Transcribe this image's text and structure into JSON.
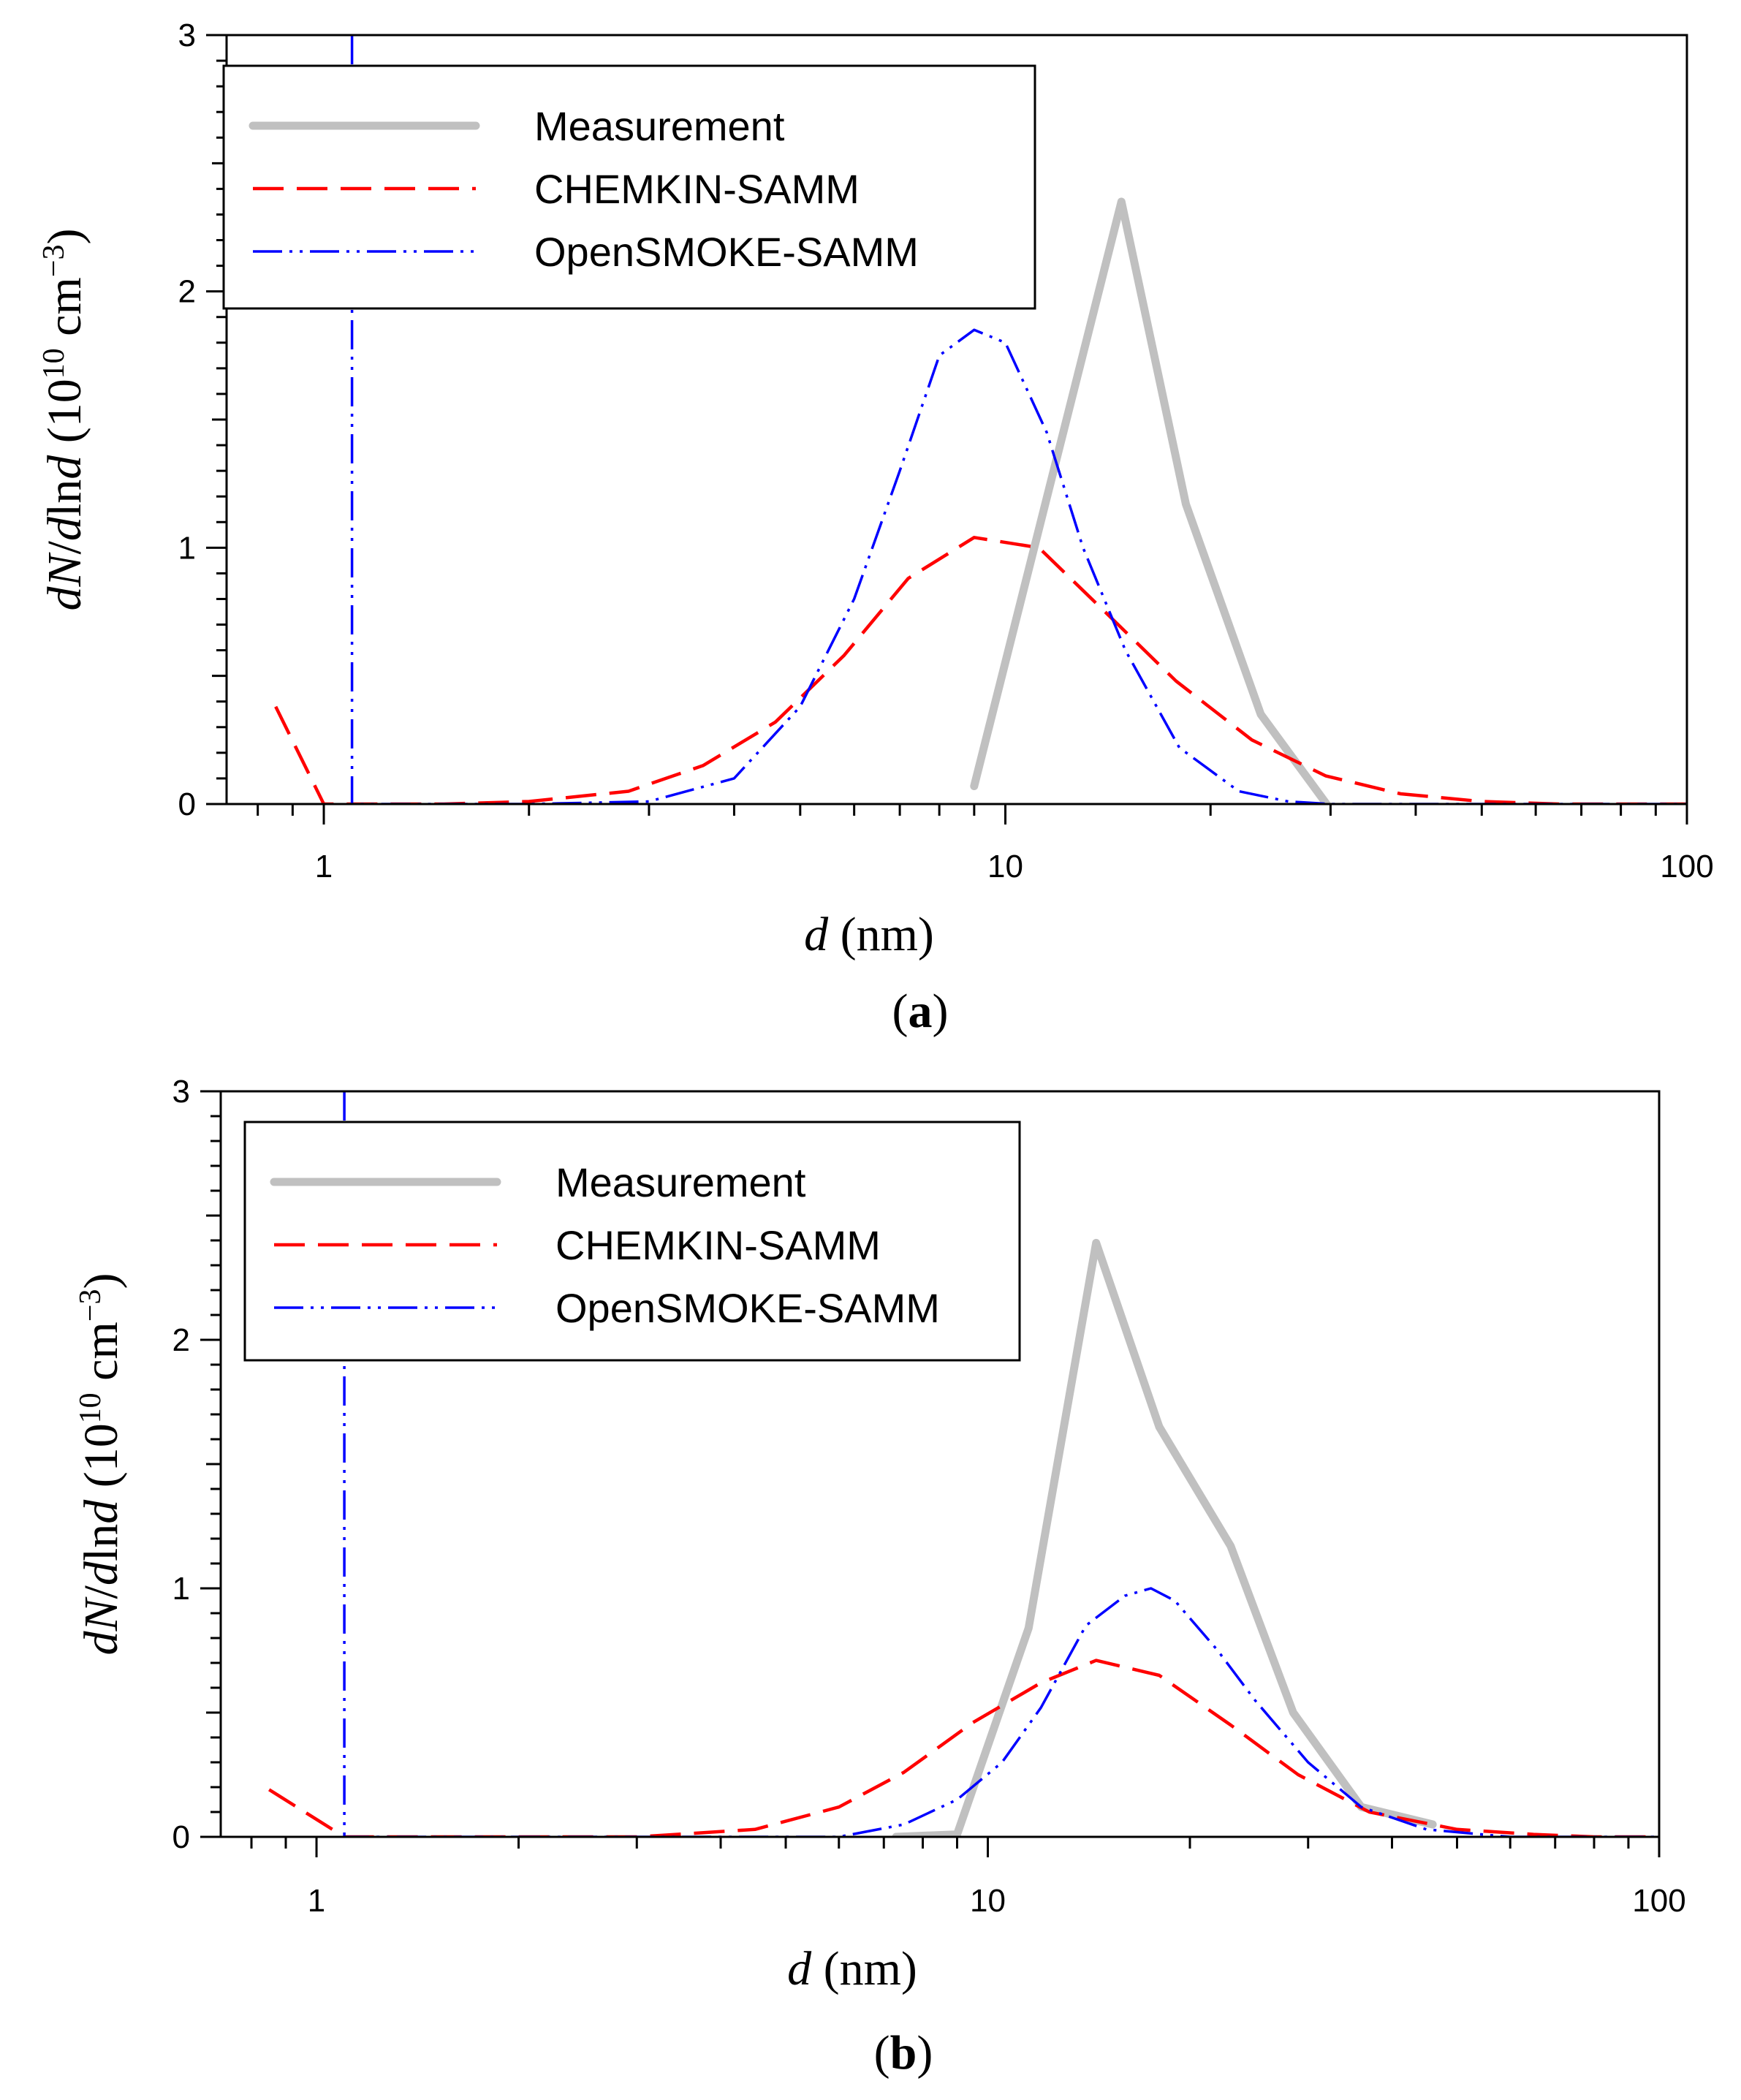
{
  "colors": {
    "measurement": "#c0c0c0",
    "chemkin": "#ff0000",
    "opensmoke": "#0000ff",
    "axis": "#000000"
  },
  "chart_data": [
    {
      "type": "line",
      "panel_label": "a",
      "xlabel_var": "d",
      "xlabel_unit": "(nm)",
      "ylabel_parts": [
        "dN",
        "/",
        "d",
        "ln",
        "d",
        " (10",
        "10",
        " cm",
        "−3",
        ")"
      ],
      "xscale": "log",
      "xlim": [
        0.72,
        100
      ],
      "ylim": [
        0,
        3
      ],
      "xticks": [
        1,
        10,
        100
      ],
      "xtick_labels": [
        "1",
        "10",
        "100"
      ],
      "yticks": [
        0,
        1,
        2,
        3
      ],
      "ytick_labels": [
        "0",
        "1",
        "2",
        "3"
      ],
      "legend_position": "top-left",
      "series": [
        {
          "name": "Measurement",
          "style": "measurement",
          "x": [
            9.0,
            14.8,
            18.4,
            23.7,
            29.6
          ],
          "y": [
            0.07,
            2.35,
            1.17,
            0.35,
            0.0
          ]
        },
        {
          "name": "CHEMKIN-SAMM",
          "style": "chemkin",
          "x": [
            0.85,
            1.0,
            1.5,
            2.0,
            2.8,
            3.6,
            4.6,
            5.8,
            7.2,
            9.0,
            11.2,
            14.0,
            17.8,
            23.0,
            29.5,
            38.0,
            50.0,
            65.0,
            85.0,
            100.0
          ],
          "y": [
            0.38,
            0.0,
            0.0,
            0.01,
            0.05,
            0.15,
            0.32,
            0.58,
            0.88,
            1.04,
            1.0,
            0.75,
            0.48,
            0.25,
            0.11,
            0.04,
            0.01,
            0.0,
            0.0,
            0.0
          ]
        },
        {
          "name": "OpenSMOKE-SAMM",
          "style": "opensmoke",
          "x": [
            1.1,
            1.1,
            1.5,
            2.0,
            3.0,
            4.0,
            5.0,
            6.0,
            7.0,
            8.0,
            9.0,
            10.0,
            11.5,
            13.0,
            15.0,
            18.0,
            22.0,
            26.0,
            30.0,
            40.0,
            100.0
          ],
          "y": [
            3.0,
            0.0,
            0.0,
            0.0,
            0.01,
            0.1,
            0.38,
            0.8,
            1.3,
            1.75,
            1.85,
            1.8,
            1.45,
            1.0,
            0.6,
            0.22,
            0.05,
            0.01,
            0.0,
            0.0,
            0.0
          ]
        }
      ]
    },
    {
      "type": "line",
      "panel_label": "b",
      "xlabel_var": "d",
      "xlabel_unit": "(nm)",
      "ylabel_parts": [
        "dN",
        "/",
        "d",
        "ln",
        "d",
        " (10",
        "10",
        " cm",
        "−3",
        ")"
      ],
      "xscale": "log",
      "xlim": [
        0.72,
        100
      ],
      "ylim": [
        0,
        3
      ],
      "xticks": [
        1,
        10,
        100
      ],
      "xtick_labels": [
        "1",
        "10",
        "100"
      ],
      "yticks": [
        0,
        1,
        2,
        3
      ],
      "ytick_labels": [
        "0",
        "1",
        "2",
        "3"
      ],
      "legend_position": "top-left",
      "series": [
        {
          "name": "Measurement",
          "style": "measurement",
          "x": [
            7.3,
            9.0,
            11.5,
            14.5,
            18.0,
            23.0,
            28.5,
            36.0,
            46.0
          ],
          "y": [
            0.0,
            0.01,
            0.84,
            2.39,
            1.65,
            1.17,
            0.5,
            0.12,
            0.05
          ]
        },
        {
          "name": "CHEMKIN-SAMM",
          "style": "chemkin",
          "x": [
            0.85,
            1.1,
            1.5,
            2.0,
            3.0,
            4.5,
            6.0,
            7.5,
            9.5,
            12.0,
            14.5,
            18.0,
            23.0,
            29.0,
            37.0,
            50.0,
            65.0,
            80.0,
            100.0
          ],
          "y": [
            0.19,
            0.0,
            0.0,
            0.0,
            0.0,
            0.03,
            0.12,
            0.26,
            0.46,
            0.62,
            0.71,
            0.65,
            0.45,
            0.25,
            0.1,
            0.03,
            0.01,
            0.0,
            0.0
          ]
        },
        {
          "name": "OpenSMOKE-SAMM",
          "style": "opensmoke",
          "x": [
            1.1,
            1.1,
            1.5,
            2.0,
            5.0,
            6.0,
            7.5,
            9.0,
            10.5,
            12.0,
            14.0,
            16.0,
            17.5,
            19.0,
            22.0,
            25.0,
            30.0,
            36.0,
            45.0,
            60.0,
            100.0
          ],
          "y": [
            3.0,
            0.0,
            0.0,
            0.0,
            0.0,
            0.0,
            0.05,
            0.15,
            0.3,
            0.52,
            0.85,
            0.97,
            1.0,
            0.95,
            0.75,
            0.55,
            0.3,
            0.12,
            0.03,
            0.0,
            0.0
          ]
        }
      ]
    }
  ]
}
